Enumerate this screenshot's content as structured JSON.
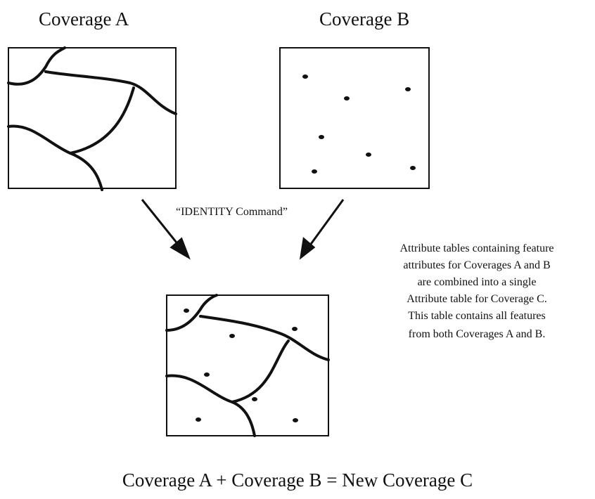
{
  "labels": {
    "coverage_a": "Coverage A",
    "coverage_b": "Coverage B",
    "command": "“IDENTITY Command”",
    "description": [
      "Attribute tables containing feature",
      "attributes for Coverages A and B",
      "are combined into a single",
      "Attribute table for Coverage C.",
      "This table contains all features",
      "from both Coverages A and B."
    ],
    "equation": "Coverage A + Coverage B = New Coverage C"
  }
}
